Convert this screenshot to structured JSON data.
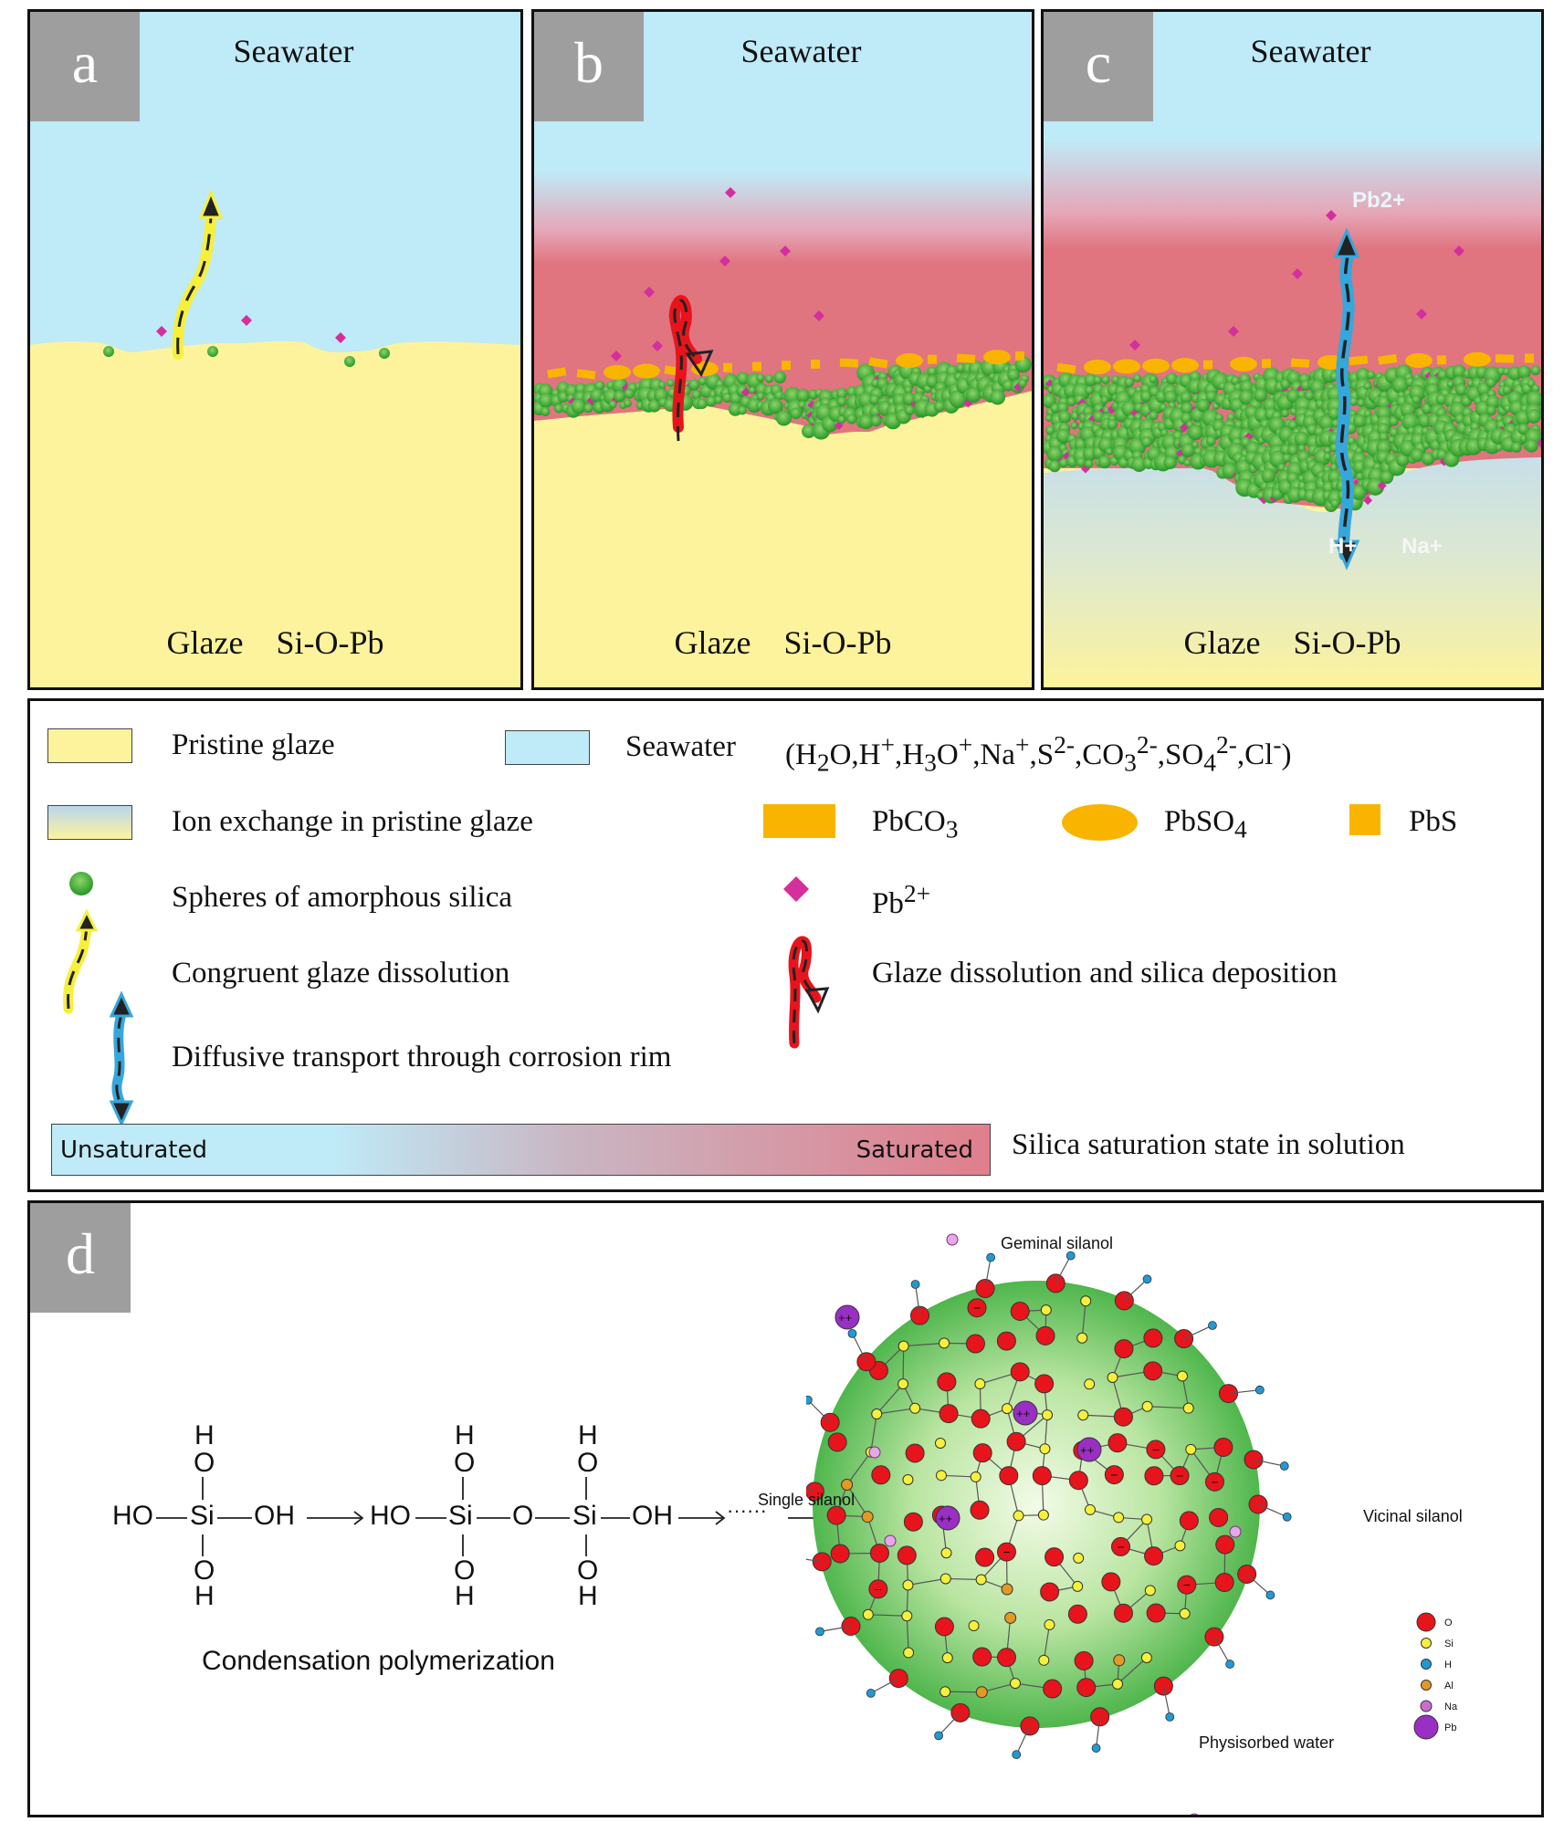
{
  "panels": [
    {
      "letter": "a",
      "top_label": "Seawater",
      "bottom_label": "Glaze    Si-O-Pb"
    },
    {
      "letter": "b",
      "top_label": "Seawater",
      "bottom_label": "Glaze    Si-O-Pb"
    },
    {
      "letter": "c",
      "top_label": "Seawater",
      "bottom_label": "Glaze    Si-O-Pb",
      "ion_top": "Pb2+",
      "ion_bottom_left": "H+",
      "ion_bottom_right": "Na+"
    }
  ],
  "legend": {
    "pristine_glaze": "Pristine glaze",
    "seawater": "Seawater",
    "seawater_ions": "(H2O,H+,H3O+,Na+,S2-,CO32-,SO42-,Cl-)",
    "ion_exchange": "Ion exchange in pristine glaze",
    "pbco3": "PbCO3",
    "pbso4": "PbSO4",
    "pbs": "PbS",
    "silica_spheres": "Spheres of amorphous silica",
    "pb2": "Pb2+",
    "congruent": "Congruent glaze dissolution",
    "dissolution_deposition": "Glaze dissolution and silica deposition",
    "diffusive": "Diffusive transport through corrosion rim",
    "unsaturated": "Unsaturated",
    "saturated": "Saturated",
    "saturation_caption": "Silica saturation state in solution"
  },
  "colors": {
    "glaze": "#fdf39c",
    "seawater": "#bfeaf7",
    "corrosion_rim": "#e0747f",
    "silica": "#3fb53f",
    "pb_ion": "#d52e9d",
    "lead_salt": "#f9b400",
    "oxygen": "#e8141c",
    "silicon": "#f6f03c",
    "hydrogen": "#1f9ad6",
    "aluminium": "#e39a22",
    "sodium": "#cc6cd2",
    "lead": "#9a2fc4"
  },
  "panel_d": {
    "letter": "d",
    "monomer": {
      "ho": "HO",
      "si": "Si",
      "oh": "OH",
      "o": "O",
      "h": "H"
    },
    "dimer": {
      "ho": "HO",
      "si": "Si",
      "o": "O",
      "oh": "OH",
      "h": "H"
    },
    "dots": "······",
    "caption": "Condensation polymerization",
    "labels": {
      "geminal": "Geminal silanol",
      "single": "Single silanol",
      "vicinal": "Vicinal silanol",
      "physisorbed": "Physisorbed water"
    },
    "atom_legend": [
      {
        "symbol": "O",
        "color": "#e8141c",
        "kind": "o"
      },
      {
        "symbol": "Si",
        "color": "#f6f03c",
        "kind": "si"
      },
      {
        "symbol": "H",
        "color": "#1f9ad6",
        "kind": "h"
      },
      {
        "symbol": "Al",
        "color": "#e39a22",
        "kind": "al"
      },
      {
        "symbol": "Na",
        "color": "#cc6cd2",
        "kind": "na"
      },
      {
        "symbol": "Pb",
        "color": "#9a2fc4",
        "kind": "pb"
      }
    ]
  }
}
